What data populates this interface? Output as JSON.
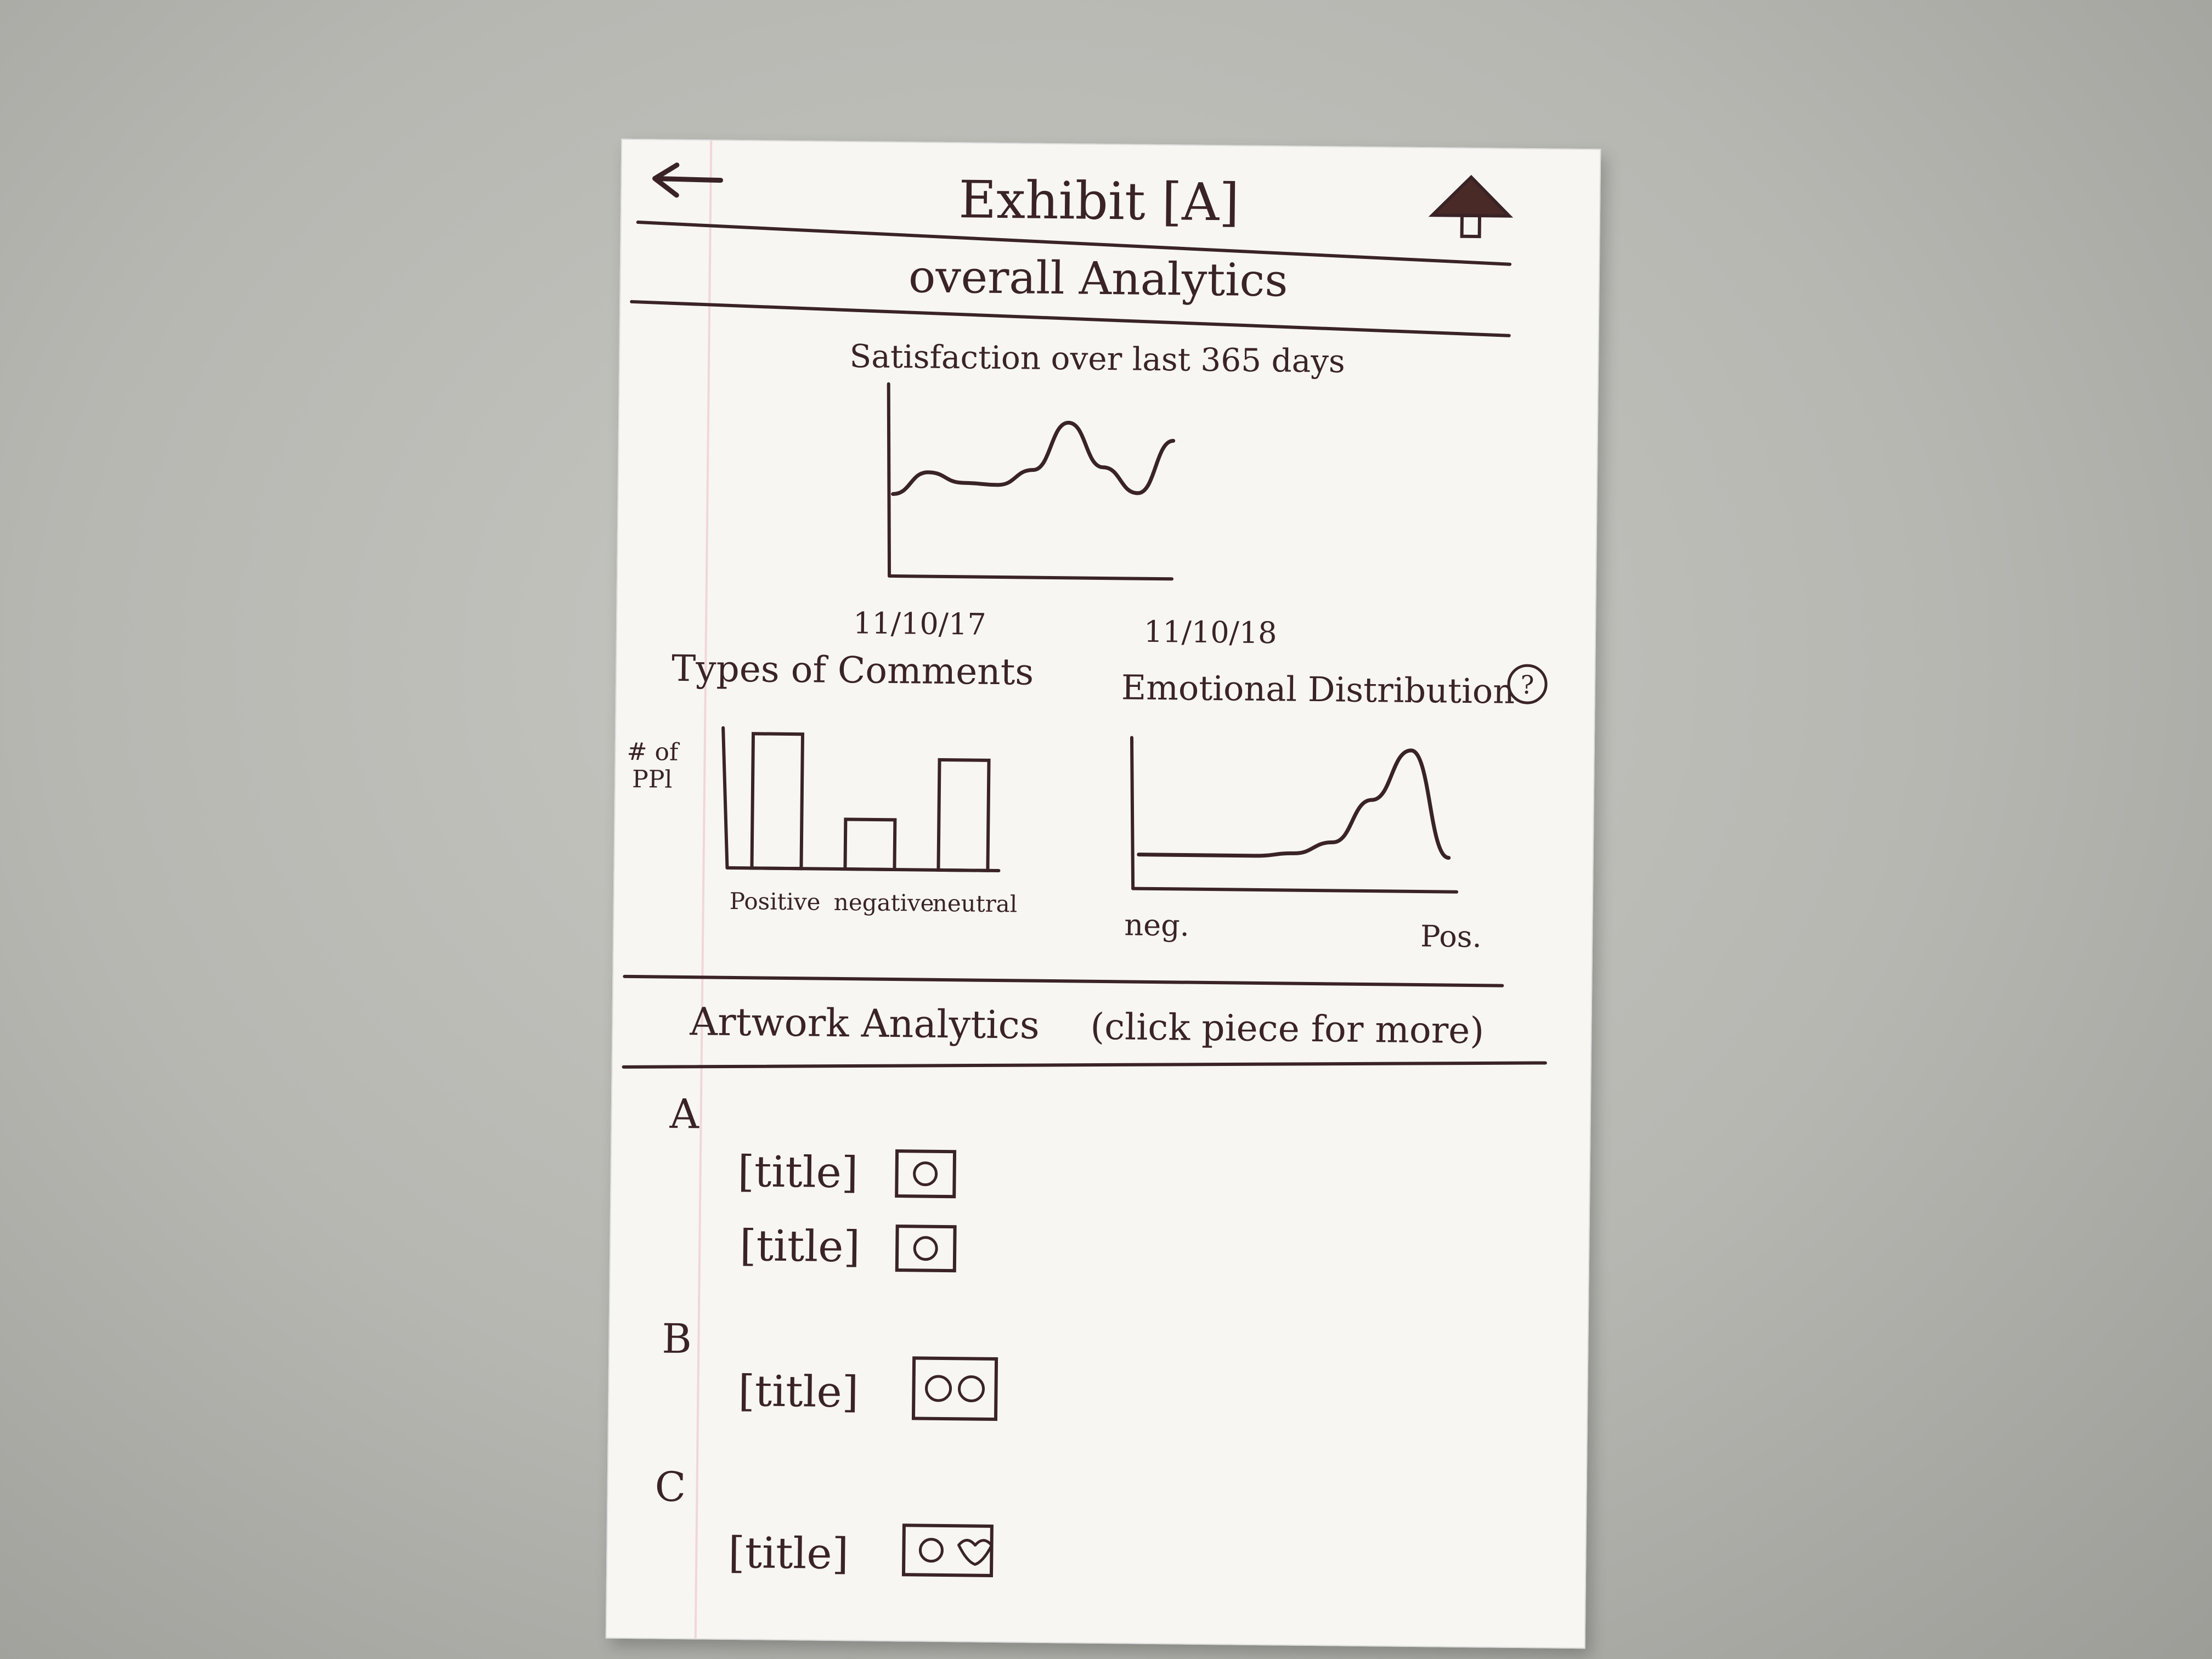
{
  "header": {
    "title": "Exhibit [A]",
    "back_icon": "arrow-left-icon",
    "home_icon": "home-icon"
  },
  "overall": {
    "section_title": "overall Analytics",
    "satisfaction": {
      "title": "Satisfaction over last 365 days",
      "x_start_label": "11/10/17",
      "x_end_label": "11/10/18"
    },
    "comments": {
      "title": "Types of Comments",
      "ylabel_line1": "# of",
      "ylabel_line2": "PPl",
      "categories": [
        "Positive",
        "negative",
        "neutral"
      ]
    },
    "emotion": {
      "title": "Emotional Distribution",
      "help_label": "?",
      "x_start_label": "neg.",
      "x_end_label": "Pos."
    }
  },
  "artwork": {
    "section_title": "Artwork Analytics",
    "hint": "(click piece for more)",
    "groups": [
      {
        "label": "A",
        "items": [
          {
            "title": "[title]"
          },
          {
            "title": "[title]"
          }
        ]
      },
      {
        "label": "B",
        "items": [
          {
            "title": "[title]"
          }
        ]
      },
      {
        "label": "C",
        "items": [
          {
            "title": "[title]"
          }
        ]
      }
    ]
  },
  "chart_data": [
    {
      "type": "line",
      "title": "Satisfaction over last 365 days",
      "x_start": "11/10/17",
      "x_end": "11/10/18",
      "values": [
        0.45,
        0.58,
        0.52,
        0.51,
        0.6,
        0.88,
        0.62,
        0.47,
        0.78
      ],
      "ylim": [
        0,
        1
      ]
    },
    {
      "type": "bar",
      "title": "Types of Comments",
      "ylabel": "# of PPl",
      "categories": [
        "Positive",
        "negative",
        "neutral"
      ],
      "values": [
        1.0,
        0.37,
        0.82
      ],
      "ylim": [
        0,
        1
      ]
    },
    {
      "type": "area",
      "title": "Emotional Distribution",
      "x_start": "neg.",
      "x_end": "Pos.",
      "values": [
        0.2,
        0.2,
        0.2,
        0.2,
        0.22,
        0.3,
        0.6,
        0.95,
        0.2
      ],
      "ylim": [
        0,
        1
      ]
    }
  ],
  "colors": {
    "ink": "#3a2327",
    "paper": "#f7f6f2",
    "desk": "#b9b9b4"
  }
}
